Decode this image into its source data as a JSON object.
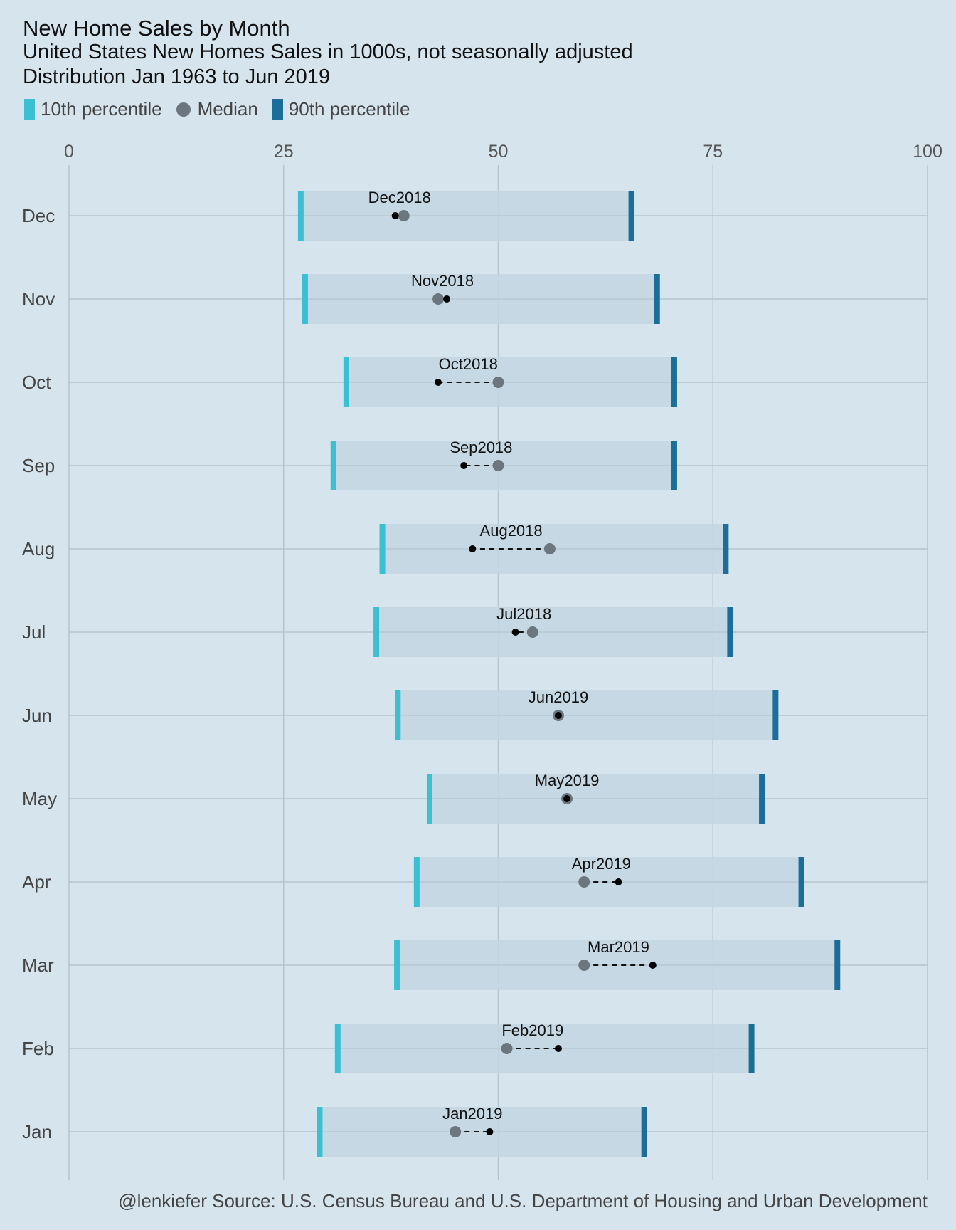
{
  "title": "New Home Sales by Month",
  "subtitle_line1": "United States New Homes Sales in 1000s, not seasonally adjusted",
  "subtitle_line2": "Distribution Jan 1963 to Jun 2019",
  "legend": {
    "p10_label": "10th percentile",
    "median_label": "Median",
    "p90_label": "90th percentile"
  },
  "caption": "@lenkiefer Source: U.S. Census Bureau and  U.S. Department of Housing and Urban Development",
  "colors": {
    "p10": "#3bbfd2",
    "p90": "#1b6e9a",
    "median": "#6c767e",
    "recent": "#000000",
    "band": "#c3d6e0",
    "grid": "#b5c4ce",
    "background": "#d6e4ed"
  },
  "chart_data": {
    "type": "dumbbell",
    "xlim": [
      0,
      100
    ],
    "x_ticks": [
      0,
      25,
      50,
      75,
      100
    ],
    "grid": true,
    "legend_position": "top-left",
    "rows": [
      {
        "month": "Dec",
        "p10": 27,
        "median": 39,
        "p90": 65.5,
        "recent_label": "Dec2018",
        "recent": 38
      },
      {
        "month": "Nov",
        "p10": 27.5,
        "median": 43,
        "p90": 68.5,
        "recent_label": "Nov2018",
        "recent": 44
      },
      {
        "month": "Oct",
        "p10": 32.3,
        "median": 50,
        "p90": 70.5,
        "recent_label": "Oct2018",
        "recent": 43
      },
      {
        "month": "Sep",
        "p10": 30.8,
        "median": 50,
        "p90": 70.5,
        "recent_label": "Sep2018",
        "recent": 46
      },
      {
        "month": "Aug",
        "p10": 36.5,
        "median": 56,
        "p90": 76.5,
        "recent_label": "Aug2018",
        "recent": 47
      },
      {
        "month": "Jul",
        "p10": 35.8,
        "median": 54,
        "p90": 77,
        "recent_label": "Jul2018",
        "recent": 52
      },
      {
        "month": "Jun",
        "p10": 38.3,
        "median": 57,
        "p90": 82.3,
        "recent_label": "Jun2019",
        "recent": 57
      },
      {
        "month": "May",
        "p10": 42,
        "median": 58,
        "p90": 80.7,
        "recent_label": "May2019",
        "recent": 58
      },
      {
        "month": "Apr",
        "p10": 40.5,
        "median": 60,
        "p90": 85.3,
        "recent_label": "Apr2019",
        "recent": 64
      },
      {
        "month": "Mar",
        "p10": 38.2,
        "median": 60,
        "p90": 89.5,
        "recent_label": "Mar2019",
        "recent": 68
      },
      {
        "month": "Feb",
        "p10": 31.3,
        "median": 51,
        "p90": 79.5,
        "recent_label": "Feb2019",
        "recent": 57
      },
      {
        "month": "Jan",
        "p10": 29.2,
        "median": 45,
        "p90": 67,
        "recent_label": "Jan2019",
        "recent": 49
      }
    ]
  }
}
